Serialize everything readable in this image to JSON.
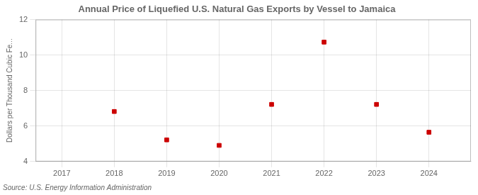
{
  "chart_data": {
    "type": "scatter",
    "title": "Annual Price of Liquefied U.S. Natural Gas Exports by Vessel to Jamaica",
    "ylabel": "Dollars per Thousand Cubic Fe...",
    "annotations": [
      "Source: U.S. Energy Information Administration"
    ],
    "x": [
      2017,
      2018,
      2019,
      2020,
      2021,
      2022,
      2023,
      2024
    ],
    "values": [
      null,
      6.82,
      5.22,
      4.91,
      7.22,
      10.73,
      7.22,
      5.65
    ],
    "color": "#cc0000",
    "marker": "square",
    "xlim": [
      2016.5,
      2024.8
    ],
    "xticks": [
      2017,
      2018,
      2019,
      2020,
      2021,
      2022,
      2023,
      2024
    ],
    "ylim": [
      4,
      12
    ],
    "yticks": [
      4,
      6,
      8,
      10,
      12
    ],
    "grid": true
  }
}
